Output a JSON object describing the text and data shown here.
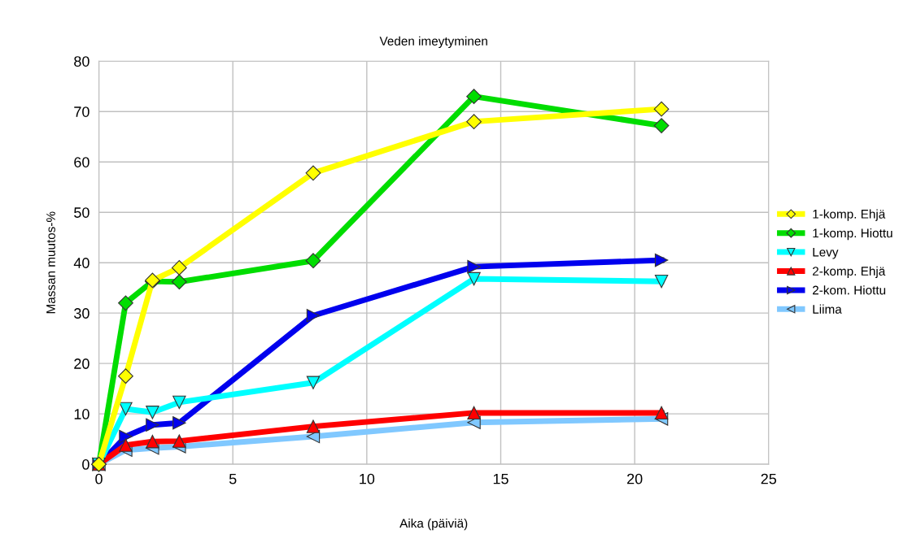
{
  "chart_data": {
    "type": "line",
    "title": "Veden imeytyminen",
    "xlabel": "Aika (päiviä)",
    "ylabel": "Massan muutos-%",
    "x": [
      0,
      1,
      2,
      3,
      8,
      14,
      21
    ],
    "series": [
      {
        "name": "1-komp. Ehjä",
        "color": "#ffff00",
        "marker": "diamond",
        "values": [
          0,
          17.5,
          36.5,
          39,
          57.8,
          68,
          70.5
        ]
      },
      {
        "name": "1-komp. Hiottu",
        "color": "#00dd00",
        "marker": "diamond",
        "values": [
          0,
          32,
          36.3,
          36.2,
          40.4,
          73,
          67.2
        ]
      },
      {
        "name": "Levy",
        "color": "#00ffff",
        "marker": "triangle_down",
        "values": [
          0,
          11,
          10.3,
          12.3,
          16.2,
          36.8,
          36.3
        ]
      },
      {
        "name": "2-komp. Ehjä",
        "color": "#ff0000",
        "marker": "triangle",
        "values": [
          0,
          3.8,
          4.5,
          4.6,
          7.5,
          10.2,
          10.2
        ]
      },
      {
        "name": "2-kom. Hiottu",
        "color": "#0000ee",
        "marker": "triangle_right",
        "values": [
          0,
          5.5,
          7.8,
          8.2,
          29.5,
          39.2,
          40.5
        ]
      },
      {
        "name": "Liima",
        "color": "#80c8ff",
        "marker": "triangle_left",
        "values": [
          0,
          2.8,
          3.2,
          3.5,
          5.5,
          8.3,
          9
        ]
      }
    ],
    "xlim": [
      0,
      25
    ],
    "xticks": [
      0,
      5,
      10,
      15,
      20,
      25
    ],
    "ylim": [
      0,
      80
    ],
    "yticks": [
      0,
      10,
      20,
      30,
      40,
      50,
      60,
      70,
      80
    ],
    "grid": true,
    "legend": "right",
    "line_style": "solid"
  }
}
